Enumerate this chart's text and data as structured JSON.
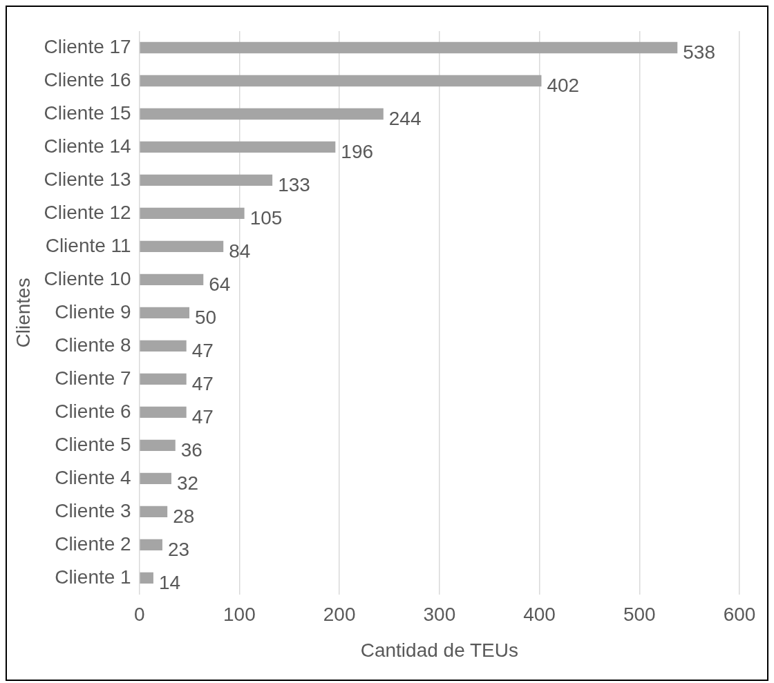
{
  "chart_data": {
    "type": "bar",
    "orientation": "horizontal",
    "xlabel": "Cantidad de TEUs",
    "ylabel": "Clientes",
    "categories": [
      "Cliente 17",
      "Cliente 16",
      "Cliente 15",
      "Cliente 14",
      "Cliente 13",
      "Cliente 12",
      "Cliente 11",
      "Cliente 10",
      "Cliente 9",
      "Cliente 8",
      "Cliente 7",
      "Cliente 6",
      "Cliente 5",
      "Cliente 4",
      "Cliente 3",
      "Cliente 2",
      "Cliente 1"
    ],
    "values": [
      538,
      402,
      244,
      196,
      133,
      105,
      84,
      64,
      50,
      47,
      47,
      47,
      36,
      32,
      28,
      23,
      14
    ],
    "color": "#a5a5a5",
    "xlim": [
      0,
      600
    ],
    "xticks": [
      0,
      100,
      200,
      300,
      400,
      500,
      600
    ],
    "grid": "x",
    "data_labels": true,
    "legend": false
  }
}
